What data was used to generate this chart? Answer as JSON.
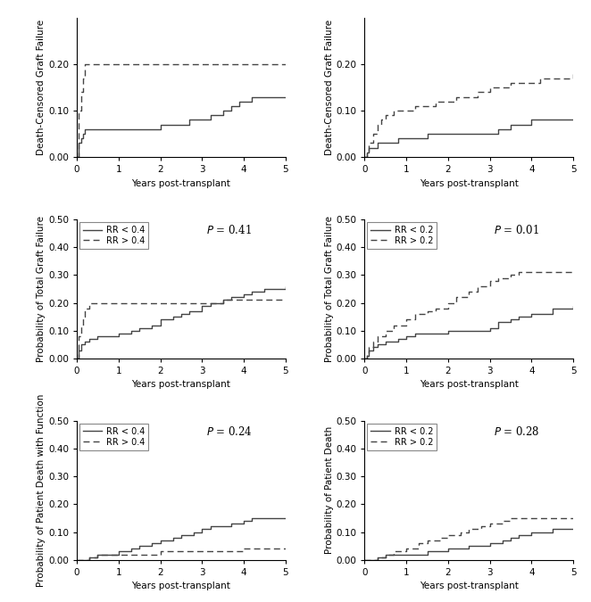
{
  "panels": [
    {
      "row": 0,
      "col": 0,
      "ylabel_full": "Death-Censored Graft Failure",
      "xlabel": "Years post-transplant",
      "ylim": [
        0.0,
        0.3
      ],
      "yticks": [
        0.0,
        0.1,
        0.2
      ],
      "ytick_labels": [
        "0.00",
        "0.10",
        "0.20"
      ],
      "xlim": [
        0,
        5
      ],
      "xticks": [
        0,
        1,
        2,
        3,
        4,
        5
      ],
      "p_value": null,
      "legend_labels": null,
      "solid_line": {
        "x": [
          0,
          0.05,
          0.1,
          0.15,
          0.2,
          0.3,
          0.5,
          1.0,
          1.5,
          2.0,
          2.3,
          2.5,
          2.7,
          3.0,
          3.2,
          3.5,
          3.7,
          3.9,
          4.0,
          4.2,
          4.5,
          5.0
        ],
        "y": [
          0,
          0.03,
          0.04,
          0.05,
          0.06,
          0.06,
          0.06,
          0.06,
          0.06,
          0.07,
          0.07,
          0.07,
          0.08,
          0.08,
          0.09,
          0.1,
          0.11,
          0.12,
          0.12,
          0.13,
          0.13,
          0.13
        ]
      },
      "dashed_line": {
        "x": [
          0,
          0.05,
          0.1,
          0.15,
          0.2,
          0.3,
          0.5,
          1.0,
          1.5,
          2.0,
          3.0,
          4.0,
          5.0
        ],
        "y": [
          0,
          0.1,
          0.14,
          0.17,
          0.2,
          0.2,
          0.2,
          0.2,
          0.2,
          0.2,
          0.2,
          0.2,
          0.2
        ]
      }
    },
    {
      "row": 0,
      "col": 1,
      "ylabel_full": "Death-Censored Graft Failure",
      "xlabel": "Years post-transplant",
      "ylim": [
        0.0,
        0.3
      ],
      "yticks": [
        0.0,
        0.1,
        0.2
      ],
      "ytick_labels": [
        "0.00",
        "0.10",
        "0.20"
      ],
      "xlim": [
        0,
        5
      ],
      "xticks": [
        0,
        1,
        2,
        3,
        4,
        5
      ],
      "p_value": null,
      "legend_labels": null,
      "solid_line": {
        "x": [
          0,
          0.05,
          0.1,
          0.2,
          0.3,
          0.5,
          0.8,
          1.0,
          1.5,
          2.0,
          2.5,
          3.0,
          3.2,
          3.5,
          3.7,
          4.0,
          4.5,
          5.0
        ],
        "y": [
          0,
          0.01,
          0.02,
          0.02,
          0.03,
          0.03,
          0.04,
          0.04,
          0.05,
          0.05,
          0.05,
          0.05,
          0.06,
          0.07,
          0.07,
          0.08,
          0.08,
          0.08
        ]
      },
      "dashed_line": {
        "x": [
          0,
          0.05,
          0.1,
          0.2,
          0.3,
          0.4,
          0.5,
          0.7,
          1.0,
          1.2,
          1.5,
          1.7,
          2.0,
          2.2,
          2.5,
          2.7,
          3.0,
          3.2,
          3.5,
          3.7,
          4.0,
          4.2,
          4.5,
          5.0
        ],
        "y": [
          0,
          0.01,
          0.03,
          0.05,
          0.07,
          0.08,
          0.09,
          0.1,
          0.1,
          0.11,
          0.11,
          0.12,
          0.12,
          0.13,
          0.13,
          0.14,
          0.15,
          0.15,
          0.16,
          0.16,
          0.16,
          0.17,
          0.17,
          0.18
        ]
      }
    },
    {
      "row": 1,
      "col": 0,
      "ylabel_full": "Probability of Total Graft Failure",
      "xlabel": "Years post-transplant",
      "ylim": [
        0.0,
        0.5
      ],
      "yticks": [
        0.0,
        0.1,
        0.2,
        0.3,
        0.4,
        0.5
      ],
      "ytick_labels": [
        "0.00",
        "0.10",
        "0.20",
        "0.30",
        "0.40",
        "0.50"
      ],
      "xlim": [
        0,
        5
      ],
      "xticks": [
        0,
        1,
        2,
        3,
        4,
        5
      ],
      "p_value": "0.41",
      "legend_labels": [
        "RR < 0.4",
        "RR > 0.4"
      ],
      "solid_line": {
        "x": [
          0,
          0.05,
          0.1,
          0.2,
          0.3,
          0.5,
          1.0,
          1.3,
          1.5,
          1.8,
          2.0,
          2.3,
          2.5,
          2.7,
          3.0,
          3.2,
          3.5,
          3.7,
          4.0,
          4.2,
          4.5,
          5.0
        ],
        "y": [
          0,
          0.03,
          0.05,
          0.06,
          0.07,
          0.08,
          0.09,
          0.1,
          0.11,
          0.12,
          0.14,
          0.15,
          0.16,
          0.17,
          0.19,
          0.2,
          0.21,
          0.22,
          0.23,
          0.24,
          0.25,
          0.26
        ]
      },
      "dashed_line": {
        "x": [
          0,
          0.05,
          0.1,
          0.15,
          0.2,
          0.3,
          0.5,
          1.0,
          2.0,
          3.0,
          3.5,
          4.0,
          5.0
        ],
        "y": [
          0,
          0.08,
          0.12,
          0.15,
          0.18,
          0.2,
          0.2,
          0.2,
          0.2,
          0.2,
          0.21,
          0.21,
          0.21
        ]
      }
    },
    {
      "row": 1,
      "col": 1,
      "ylabel_full": "Probability of Total Graft Failure",
      "xlabel": "Years post-transplant",
      "ylim": [
        0.0,
        0.5
      ],
      "yticks": [
        0.0,
        0.1,
        0.2,
        0.3,
        0.4,
        0.5
      ],
      "ytick_labels": [
        "0.00",
        "0.10",
        "0.20",
        "0.30",
        "0.40",
        "0.50"
      ],
      "xlim": [
        0,
        5
      ],
      "xticks": [
        0,
        1,
        2,
        3,
        4,
        5
      ],
      "p_value": "0.01",
      "legend_labels": [
        "RR < 0.2",
        "RR > 0.2"
      ],
      "solid_line": {
        "x": [
          0,
          0.05,
          0.1,
          0.2,
          0.3,
          0.5,
          0.8,
          1.0,
          1.2,
          1.5,
          2.0,
          2.5,
          3.0,
          3.2,
          3.5,
          3.7,
          4.0,
          4.5,
          5.0
        ],
        "y": [
          0,
          0.01,
          0.03,
          0.04,
          0.05,
          0.06,
          0.07,
          0.08,
          0.09,
          0.09,
          0.1,
          0.1,
          0.11,
          0.13,
          0.14,
          0.15,
          0.16,
          0.18,
          0.19
        ]
      },
      "dashed_line": {
        "x": [
          0,
          0.05,
          0.1,
          0.2,
          0.3,
          0.5,
          0.7,
          1.0,
          1.2,
          1.5,
          1.7,
          2.0,
          2.2,
          2.5,
          2.7,
          3.0,
          3.2,
          3.5,
          3.7,
          4.0,
          4.5,
          5.0
        ],
        "y": [
          0,
          0.02,
          0.04,
          0.06,
          0.08,
          0.1,
          0.12,
          0.14,
          0.16,
          0.17,
          0.18,
          0.2,
          0.22,
          0.24,
          0.26,
          0.28,
          0.29,
          0.3,
          0.31,
          0.31,
          0.31,
          0.31
        ]
      }
    },
    {
      "row": 2,
      "col": 0,
      "ylabel_full": "Probability of Patient Death with Function",
      "xlabel": "Years post-transplant",
      "ylim": [
        0.0,
        0.5
      ],
      "yticks": [
        0.0,
        0.1,
        0.2,
        0.3,
        0.4,
        0.5
      ],
      "ytick_labels": [
        "0.00",
        "0.10",
        "0.20",
        "0.30",
        "0.40",
        "0.50"
      ],
      "xlim": [
        0,
        5
      ],
      "xticks": [
        0,
        1,
        2,
        3,
        4,
        5
      ],
      "p_value": "0.24",
      "legend_labels": [
        "RR < 0.4",
        "RR > 0.4"
      ],
      "solid_line": {
        "x": [
          0,
          0.3,
          0.5,
          1.0,
          1.3,
          1.5,
          1.8,
          2.0,
          2.3,
          2.5,
          2.8,
          3.0,
          3.2,
          3.5,
          3.7,
          4.0,
          4.2,
          4.5,
          5.0
        ],
        "y": [
          0,
          0.01,
          0.02,
          0.03,
          0.04,
          0.05,
          0.06,
          0.07,
          0.08,
          0.09,
          0.1,
          0.11,
          0.12,
          0.12,
          0.13,
          0.14,
          0.15,
          0.15,
          0.15
        ]
      },
      "dashed_line": {
        "x": [
          0,
          0.3,
          0.5,
          1.0,
          2.0,
          3.0,
          4.0,
          5.0
        ],
        "y": [
          0,
          0.01,
          0.02,
          0.02,
          0.03,
          0.03,
          0.04,
          0.04
        ]
      }
    },
    {
      "row": 2,
      "col": 1,
      "ylabel_full": "Probability of Patient Death",
      "xlabel": "Years post-transplant",
      "ylim": [
        0.0,
        0.5
      ],
      "yticks": [
        0.0,
        0.1,
        0.2,
        0.3,
        0.4,
        0.5
      ],
      "ytick_labels": [
        "0.00",
        "0.10",
        "0.20",
        "0.30",
        "0.40",
        "0.50"
      ],
      "xlim": [
        0,
        5
      ],
      "xticks": [
        0,
        1,
        2,
        3,
        4,
        5
      ],
      "p_value": "0.28",
      "legend_labels": [
        "RR < 0.2",
        "RR > 0.2"
      ],
      "solid_line": {
        "x": [
          0,
          0.3,
          0.5,
          1.0,
          1.5,
          2.0,
          2.5,
          3.0,
          3.3,
          3.5,
          3.7,
          4.0,
          4.5,
          5.0
        ],
        "y": [
          0,
          0.01,
          0.02,
          0.02,
          0.03,
          0.04,
          0.05,
          0.06,
          0.07,
          0.08,
          0.09,
          0.1,
          0.11,
          0.11
        ]
      },
      "dashed_line": {
        "x": [
          0,
          0.3,
          0.5,
          0.7,
          1.0,
          1.3,
          1.5,
          1.8,
          2.0,
          2.3,
          2.5,
          2.8,
          3.0,
          3.3,
          3.5,
          3.7,
          4.0,
          4.5,
          5.0
        ],
        "y": [
          0,
          0.01,
          0.02,
          0.03,
          0.04,
          0.06,
          0.07,
          0.08,
          0.09,
          0.1,
          0.11,
          0.12,
          0.13,
          0.14,
          0.15,
          0.15,
          0.15,
          0.15,
          0.15
        ]
      }
    }
  ],
  "line_color": "#444444",
  "background_color": "#ffffff",
  "font_size": 7.5,
  "legend_font_size": 7.0,
  "p_font_size": 8.5
}
